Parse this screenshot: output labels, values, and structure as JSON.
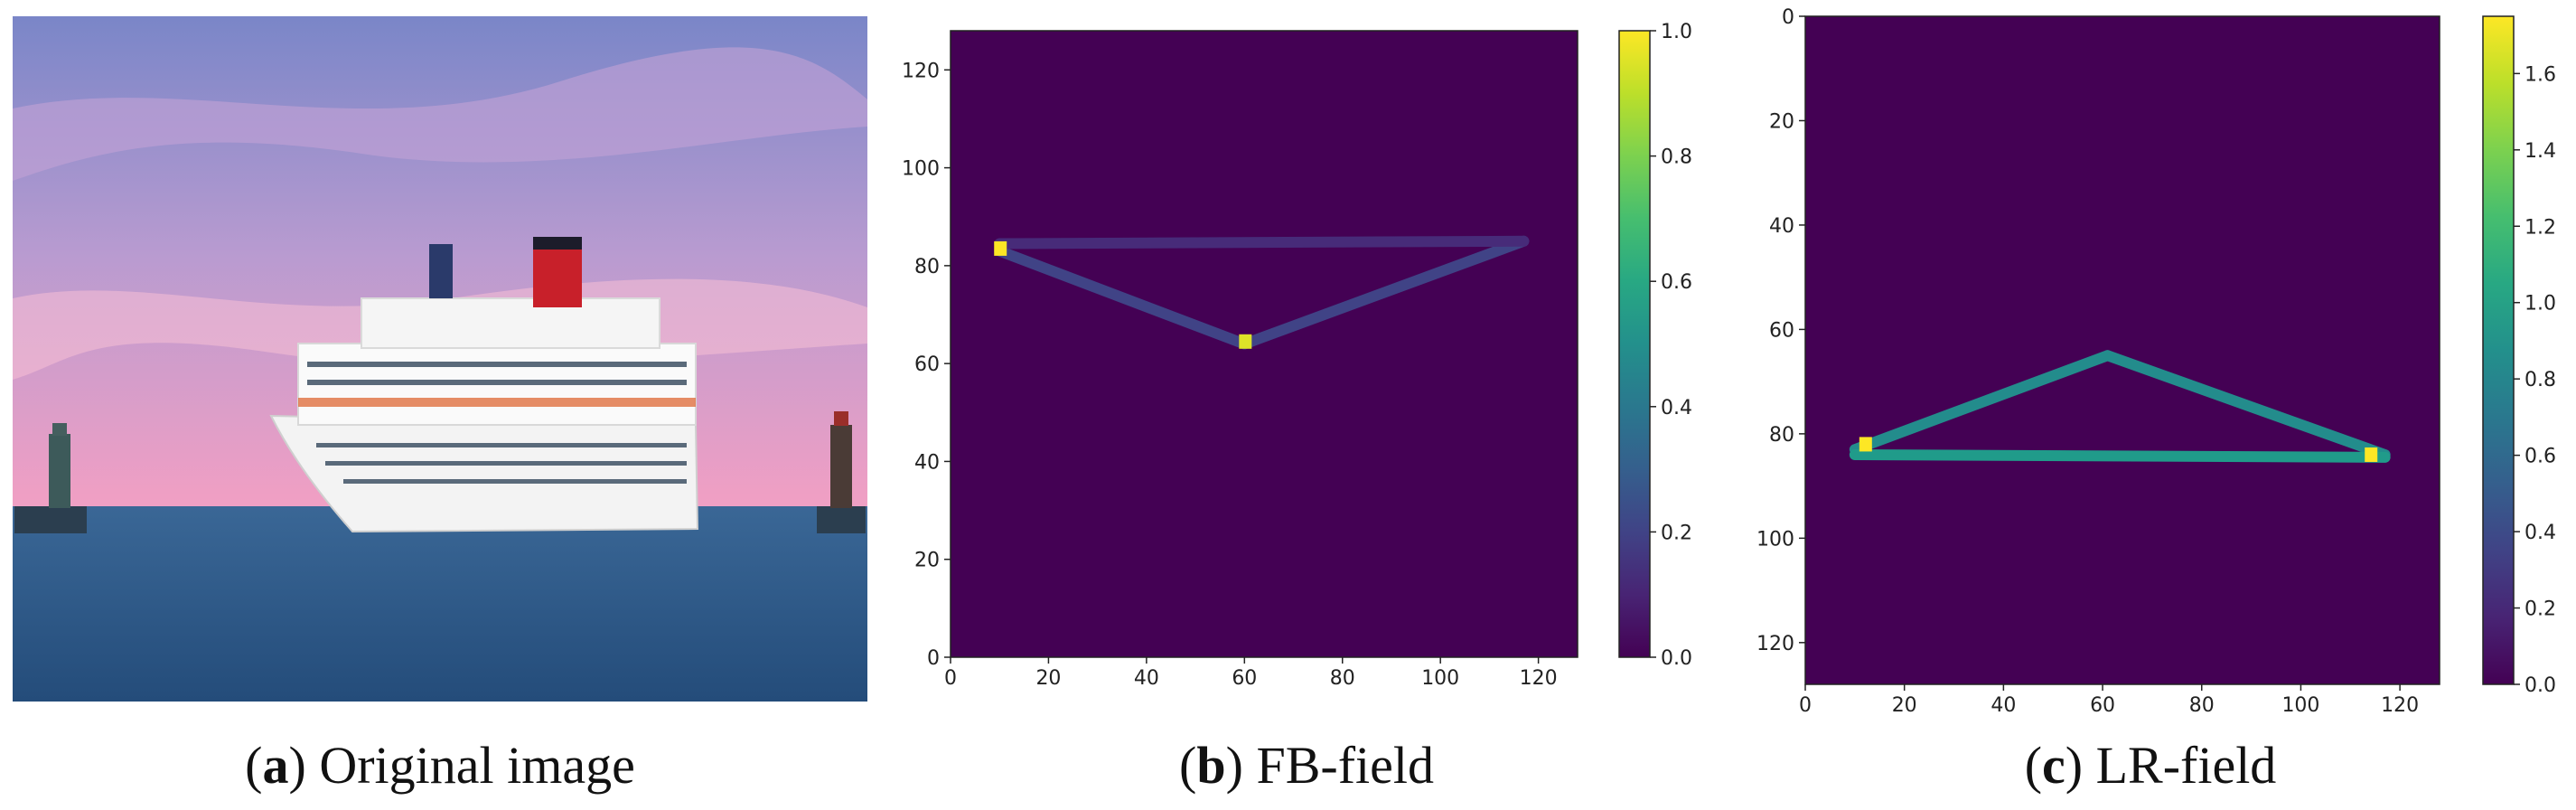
{
  "captions": {
    "a": {
      "letter": "a",
      "text": "Original image"
    },
    "b": {
      "letter": "b",
      "text": "FB-field"
    },
    "c": {
      "letter": "c",
      "text": "LR-field"
    }
  },
  "colors": {
    "sky_top": "#7d84c6",
    "sky_pink": "#ee9fc6",
    "sea": "#2e5c8c",
    "ship_hull": "#f2f2f2",
    "funnel_red": "#c8202a",
    "viridis_low": "#440154",
    "viridis_mid": "#21918c",
    "viridis_high": "#fde725"
  },
  "chart_data": [
    {
      "type": "heatmap",
      "panel": "b",
      "xlim": [
        0,
        128
      ],
      "ylim": [
        0,
        128
      ],
      "y_direction": "up",
      "x_ticks": [
        0,
        20,
        40,
        60,
        80,
        100,
        120
      ],
      "y_ticks": [
        0,
        20,
        40,
        60,
        80,
        100,
        120
      ],
      "colorbar": {
        "range": [
          0.0,
          1.0
        ],
        "ticks": [
          "0.0",
          "0.2",
          "0.4",
          "0.6",
          "0.8",
          "1.0"
        ]
      },
      "segments": [
        {
          "from": [
            10,
            83
          ],
          "to": [
            60,
            64
          ],
          "value": 0.2
        },
        {
          "from": [
            60,
            64
          ],
          "to": [
            117,
            85
          ],
          "value": 0.2
        },
        {
          "from": [
            10,
            84.5
          ],
          "to": [
            117,
            85
          ],
          "value": 0.12
        }
      ],
      "hotspots": [
        {
          "x": 10,
          "y": 83.5,
          "value": 1.0
        },
        {
          "x": 60,
          "y": 64.5,
          "value": 0.95
        }
      ]
    },
    {
      "type": "heatmap",
      "panel": "c",
      "xlim": [
        0,
        128
      ],
      "ylim": [
        128,
        0
      ],
      "y_direction": "down",
      "x_ticks": [
        0,
        20,
        40,
        60,
        80,
        100,
        120
      ],
      "y_ticks": [
        0,
        20,
        40,
        60,
        80,
        100,
        120
      ],
      "colorbar": {
        "range": [
          0.0,
          1.75
        ],
        "ticks": [
          "0.0",
          "0.2",
          "0.4",
          "0.6",
          "0.8",
          "1.0",
          "1.2",
          "1.4",
          "1.6"
        ]
      },
      "segments": [
        {
          "from": [
            10,
            83
          ],
          "to": [
            61,
            65
          ],
          "value": 0.85
        },
        {
          "from": [
            61,
            65
          ],
          "to": [
            117,
            84
          ],
          "value": 0.85
        },
        {
          "from": [
            10,
            84
          ],
          "to": [
            117,
            84.5
          ],
          "value": 0.95
        }
      ],
      "hotspots": [
        {
          "x": 12,
          "y": 82,
          "value": 1.75
        },
        {
          "x": 114,
          "y": 84,
          "value": 1.75
        }
      ]
    }
  ]
}
